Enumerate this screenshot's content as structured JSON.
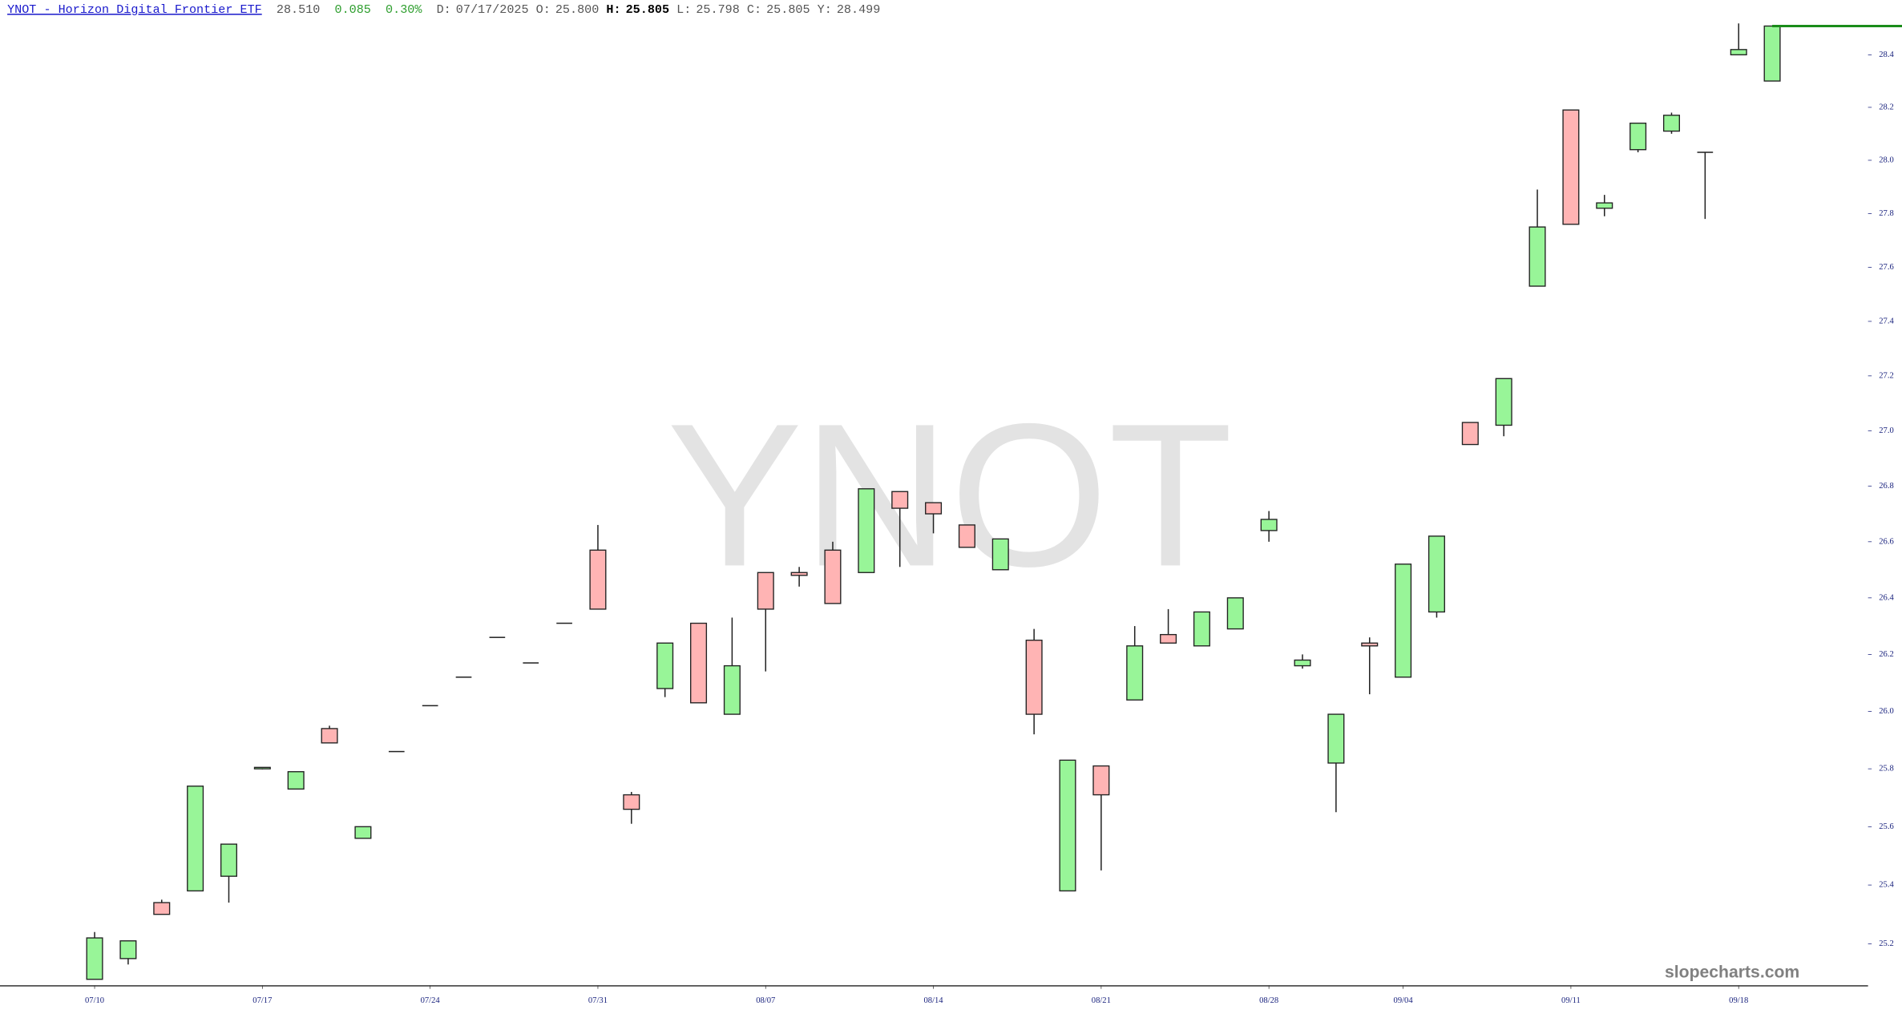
{
  "chart_data": {
    "type": "candlestick",
    "title": "YNOT - Horizon Digital Frontier ETF",
    "last": {
      "value": 28.51,
      "label": "28.510"
    },
    "change": "0.085",
    "change_pct": "0.30%",
    "hover": [
      {
        "label": "D:",
        "value": "07/17/2025"
      },
      {
        "label": "O:",
        "value": "25.800"
      },
      {
        "label": "H:",
        "value": "25.805"
      },
      {
        "label": "L:",
        "value": "25.798"
      },
      {
        "label": "C:",
        "value": "25.805"
      },
      {
        "label": "Y:",
        "value": "28.499"
      }
    ],
    "watermark": "YNOT",
    "brand": "slopecharts.com",
    "up_color": "#98f598",
    "down_color": "#ffb4b4",
    "last_color": "#1a8c1a",
    "log_scale": true,
    "categories": [
      "07/10",
      null,
      null,
      null,
      null,
      "07/17",
      null,
      null,
      null,
      null,
      "07/24",
      null,
      null,
      null,
      null,
      "07/31",
      null,
      null,
      null,
      null,
      "08/07",
      null,
      null,
      null,
      null,
      "08/14",
      null,
      null,
      null,
      null,
      "08/21",
      null,
      null,
      null,
      null,
      "08/28",
      null,
      null,
      null,
      "09/04",
      null,
      null,
      null,
      null,
      "09/11",
      null,
      null,
      null,
      null,
      "09/18",
      null
    ],
    "open": [
      25.08,
      25.15,
      25.34,
      25.38,
      25.43,
      25.8,
      25.73,
      25.94,
      25.56,
      25.86,
      26.02,
      26.12,
      26.26,
      26.17,
      26.31,
      26.57,
      25.71,
      26.08,
      26.31,
      25.99,
      26.49,
      26.49,
      26.57,
      26.49,
      26.78,
      26.74,
      26.66,
      26.5,
      26.25,
      25.38,
      25.81,
      26.04,
      26.27,
      26.23,
      26.29,
      26.64,
      26.16,
      25.82,
      26.24,
      26.12,
      26.35,
      27.03,
      27.02,
      27.53,
      28.19,
      27.82,
      28.04,
      28.11,
      28.03,
      28.4,
      28.3
    ],
    "high": [
      25.24,
      25.21,
      25.35,
      25.74,
      25.54,
      25.805,
      25.79,
      25.95,
      25.6,
      25.86,
      26.02,
      26.12,
      26.26,
      26.17,
      26.31,
      26.66,
      25.72,
      26.24,
      26.31,
      26.33,
      26.49,
      26.51,
      26.6,
      26.79,
      26.78,
      26.74,
      26.66,
      26.61,
      26.29,
      25.83,
      25.81,
      26.3,
      26.36,
      26.35,
      26.4,
      26.71,
      26.2,
      25.99,
      26.26,
      26.52,
      26.62,
      27.03,
      27.19,
      27.89,
      28.19,
      27.87,
      28.14,
      28.18,
      28.03,
      28.52,
      28.51
    ],
    "low": [
      25.08,
      25.13,
      25.3,
      25.38,
      25.34,
      25.798,
      25.73,
      25.89,
      25.56,
      25.86,
      26.02,
      26.12,
      26.26,
      26.17,
      26.31,
      26.36,
      25.61,
      26.05,
      26.03,
      25.99,
      26.14,
      26.44,
      26.38,
      26.49,
      26.51,
      26.63,
      26.58,
      26.5,
      25.92,
      25.38,
      25.45,
      26.04,
      26.24,
      26.23,
      26.29,
      26.6,
      26.15,
      25.65,
      26.06,
      26.12,
      26.33,
      26.95,
      26.98,
      27.53,
      27.76,
      27.79,
      28.03,
      28.1,
      27.78,
      28.4,
      28.3
    ],
    "close": [
      25.22,
      25.21,
      25.3,
      25.74,
      25.54,
      25.805,
      25.79,
      25.89,
      25.6,
      25.86,
      26.02,
      26.12,
      26.26,
      26.17,
      26.31,
      26.36,
      25.66,
      26.24,
      26.03,
      26.16,
      26.36,
      26.48,
      26.38,
      26.79,
      26.72,
      26.7,
      26.58,
      26.61,
      25.99,
      25.83,
      25.71,
      26.23,
      26.24,
      26.35,
      26.4,
      26.68,
      26.18,
      25.99,
      26.23,
      26.52,
      26.62,
      26.95,
      27.19,
      27.75,
      27.76,
      27.84,
      28.14,
      28.17,
      28.03,
      28.42,
      28.51
    ],
    "ylim": [
      25.06,
      28.61
    ],
    "yticks": [
      25.2,
      25.4,
      25.6,
      25.8,
      {
        "value": 26,
        "label": "26.0"
      },
      26.2,
      26.4,
      26.6,
      26.8,
      {
        "value": 27,
        "label": "27.0"
      },
      27.2,
      27.4,
      27.6,
      27.8,
      {
        "value": 28,
        "label": "28.0"
      },
      28.2,
      28.4
    ]
  }
}
